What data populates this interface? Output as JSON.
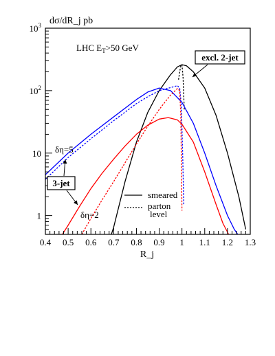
{
  "chart_data": {
    "type": "line",
    "ylabel": "dσ/dR_j  pb",
    "xlabel": "R_j",
    "xlim": [
      0.4,
      1.3
    ],
    "ylim": [
      0.5,
      1000
    ],
    "yscale": "log",
    "grid": false,
    "x_ticks": [
      "0.4",
      "0.5",
      "0.6",
      "0.7",
      "0.8",
      "0.9",
      "1",
      "1.1",
      "1.2",
      "1.3"
    ],
    "x_tick_values": [
      0.4,
      0.5,
      0.6,
      0.7,
      0.8,
      0.9,
      1.0,
      1.1,
      1.2,
      1.3
    ],
    "y_ticks": [
      {
        "value": 1,
        "base": "1",
        "exp": ""
      },
      {
        "value": 10,
        "base": "10",
        "exp": ""
      },
      {
        "value": 100,
        "base": "10",
        "exp": "2"
      },
      {
        "value": 1000,
        "base": "10",
        "exp": "3"
      }
    ],
    "annotations": {
      "header": "LHC  E",
      "header_sub": "T",
      "header_rest": ">50 GeV",
      "excl_label": "excl. 2-jet",
      "three_jet_label": "3-jet",
      "deta5": "δη=5",
      "deta2": "δη=2"
    },
    "legend": {
      "position": "bottom-center",
      "entries": [
        {
          "label": "smeared",
          "style": "solid"
        },
        {
          "label": "parton\nlevel",
          "style": "dashed"
        }
      ]
    },
    "series": [
      {
        "style": "solid",
        "color": "#000000",
        "x": [
          0.69,
          0.7,
          0.75,
          0.8,
          0.85,
          0.9,
          0.95,
          0.98,
          1.0,
          1.02,
          1.05,
          1.1,
          1.15,
          1.2,
          1.25,
          1.28
        ],
        "y": [
          0.5,
          0.65,
          3.5,
          15,
          45,
          100,
          180,
          240,
          260,
          250,
          200,
          110,
          40,
          10,
          2.0,
          0.6
        ]
      },
      {
        "style": "dashed",
        "color": "#000000",
        "x": [
          0.985,
          0.99,
          0.995,
          1.0,
          1.005,
          1.01
        ],
        "y": [
          150,
          200,
          250,
          260,
          160,
          50
        ]
      },
      {
        "style": "solid",
        "color": "#0000ff",
        "x": [
          0.4,
          0.5,
          0.6,
          0.7,
          0.8,
          0.85,
          0.9,
          0.95,
          1.0,
          1.05,
          1.1,
          1.15,
          1.2,
          1.23,
          1.245
        ],
        "y": [
          4.5,
          10,
          20,
          38,
          72,
          95,
          110,
          100,
          65,
          30,
          10,
          3.0,
          1.0,
          0.6,
          0.5
        ]
      },
      {
        "style": "dashed",
        "color": "#0000ff",
        "x": [
          0.4,
          0.5,
          0.6,
          0.7,
          0.8,
          0.85,
          0.9,
          0.95,
          0.98,
          0.99,
          0.997,
          1.003,
          1.008
        ],
        "y": [
          3.8,
          8.5,
          17,
          33,
          62,
          80,
          100,
          112,
          120,
          110,
          60,
          10,
          1.5
        ]
      },
      {
        "style": "solid",
        "color": "#ff0000",
        "x": [
          0.475,
          0.5,
          0.55,
          0.6,
          0.65,
          0.7,
          0.75,
          0.8,
          0.85,
          0.9,
          0.94,
          0.98,
          1.0,
          1.05,
          1.1,
          1.15,
          1.18,
          1.205
        ],
        "y": [
          0.5,
          0.7,
          1.4,
          2.7,
          4.8,
          8.0,
          13,
          20,
          28,
          35,
          37,
          34,
          29,
          15,
          5.0,
          1.5,
          0.75,
          0.5
        ]
      },
      {
        "style": "dashed",
        "color": "#ff0000",
        "x": [
          0.56,
          0.6,
          0.65,
          0.7,
          0.75,
          0.8,
          0.85,
          0.9,
          0.95,
          0.98,
          0.99,
          0.995,
          1.0
        ],
        "y": [
          0.5,
          0.9,
          1.8,
          3.5,
          7.0,
          14,
          27,
          50,
          85,
          108,
          100,
          40,
          1.2
        ]
      }
    ]
  }
}
